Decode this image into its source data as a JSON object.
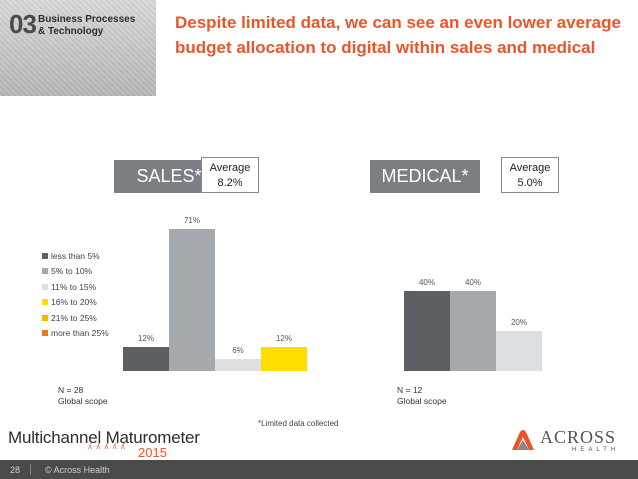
{
  "header": {
    "section_number": "03",
    "section_line1": "Business Processes",
    "section_line2": "& Technology",
    "title": "Despite limited data, we can see an even lower average budget allocation to digital within sales and medical"
  },
  "colors": {
    "accent": "#e8562a",
    "panel_label_bg": "#7b7f83",
    "less_than_5": "#5c6064",
    "5_to_10": "#a4a9ae",
    "11_to_15": "#dde0e3",
    "16_to_20": "#ffde00",
    "21_to_25": "#f5b800",
    "more_than_25": "#f07a1a"
  },
  "legend": [
    {
      "label": "less than 5%",
      "color": "#5c6064"
    },
    {
      "label": "5% to 10%",
      "color": "#a4a9ae"
    },
    {
      "label": "11% to 15%",
      "color": "#dde0e3"
    },
    {
      "label": "16% to 20%",
      "color": "#ffde00"
    },
    {
      "label": "21% to 25%",
      "color": "#f5b800"
    },
    {
      "label": "more than 25%",
      "color": "#f07a1a"
    }
  ],
  "sales": {
    "label": "SALES*",
    "avg_line1": "Average",
    "avg_line2": "8.2%",
    "n_line": "N = 28",
    "scope_line": "Global scope"
  },
  "medical": {
    "label": "MEDICAL*",
    "avg_line1": "Average",
    "avg_line2": "5.0%",
    "n_line": "N = 12",
    "scope_line": "Global scope"
  },
  "footnote": "*Limited data collected",
  "footer": {
    "logo_text": "Multichannel Maturometer",
    "logo_year": "2015",
    "across_word": "ACROSS",
    "across_sub": "HEALTH",
    "page_number": "28",
    "copyright": "© Across Health"
  },
  "chart_data": [
    {
      "type": "bar",
      "categories": [
        "less than 5%",
        "5% to 10%",
        "11% to 15%",
        "16% to 20%",
        "21% to 25%",
        "more than 25%"
      ],
      "values": [
        12,
        71,
        6,
        12,
        0,
        0
      ],
      "value_labels": [
        "12%",
        "71%",
        "6%",
        "12%",
        "",
        ""
      ],
      "title": "SALES*",
      "ylim": [
        0,
        75
      ],
      "grid": false
    },
    {
      "type": "bar",
      "categories": [
        "less than 5%",
        "5% to 10%",
        "11% to 15%",
        "16% to 20%",
        "21% to 25%",
        "more than 25%"
      ],
      "values": [
        40,
        40,
        20,
        0,
        0,
        0
      ],
      "value_labels": [
        "40%",
        "40%",
        "20%",
        "",
        "",
        ""
      ],
      "title": "MEDICAL*",
      "ylim": [
        0,
        75
      ],
      "grid": false
    }
  ]
}
